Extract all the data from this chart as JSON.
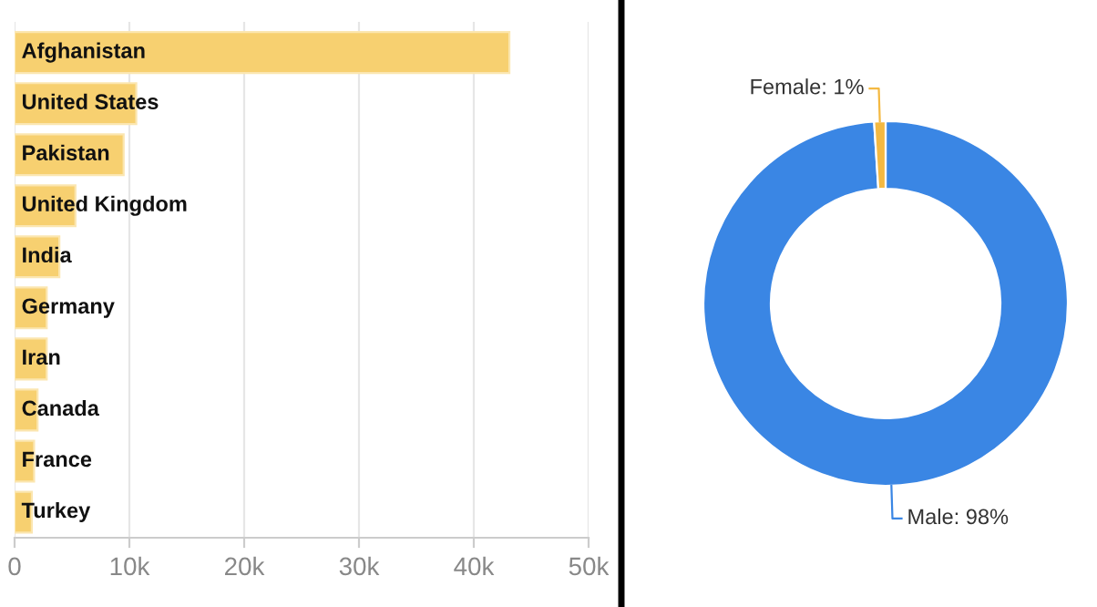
{
  "chart_data": [
    {
      "type": "bar",
      "orientation": "horizontal",
      "categories": [
        "Afghanistan",
        "United States",
        "Pakistan",
        "United Kingdom",
        "India",
        "Germany",
        "Iran",
        "Canada",
        "France",
        "Turkey"
      ],
      "values": [
        43100,
        10600,
        9500,
        5300,
        3900,
        2800,
        2800,
        2000,
        1700,
        1500
      ],
      "color": "#f7d070",
      "xlim": [
        0,
        50000
      ],
      "xticks": [
        0,
        {
          "value": 10000,
          "label": "10k"
        },
        {
          "value": 20000,
          "label": "20k"
        },
        {
          "value": 30000,
          "label": "30k"
        },
        {
          "value": 40000,
          "label": "40k"
        },
        {
          "value": 50000,
          "label": "50k"
        }
      ],
      "grid": "x"
    },
    {
      "type": "donut",
      "categories": [
        "Male",
        "Female"
      ],
      "values": [
        98,
        1
      ],
      "colors": [
        "#3a86e4",
        "#f4b942"
      ],
      "value_labels": [
        "98%",
        "1%"
      ]
    }
  ]
}
